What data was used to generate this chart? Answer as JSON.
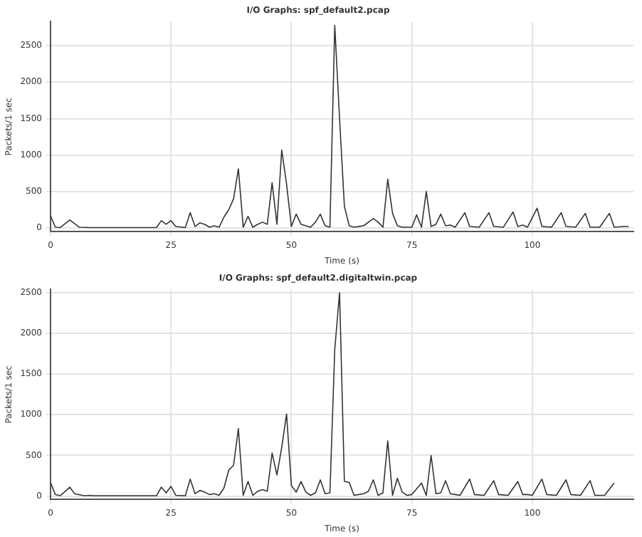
{
  "chart_data": [
    {
      "type": "line",
      "title": "I/O Graphs: spf_default2.pcap",
      "xlabel": "Time (s)",
      "ylabel": "Packets/1 sec",
      "xlim": [
        0,
        121
      ],
      "xticks": [
        0,
        25,
        50,
        75,
        100
      ],
      "ylim": [
        -50,
        2830
      ],
      "yticks": [
        0,
        500,
        1000,
        1500,
        2000,
        2500
      ],
      "grid": true,
      "legend": false,
      "marker": "none",
      "series": [
        {
          "color": "#333333",
          "x": [
            0,
            1,
            2,
            4,
            6,
            8,
            22,
            23,
            24,
            25,
            26,
            28,
            29,
            30,
            31,
            32,
            33,
            34,
            35,
            36,
            37,
            38,
            39,
            40,
            41,
            42,
            43,
            44,
            45,
            46,
            47,
            48,
            49,
            50,
            51,
            52,
            53,
            54,
            55,
            56,
            57,
            58,
            59,
            60,
            61,
            62,
            63,
            65,
            67,
            68,
            69,
            70,
            71,
            72,
            73,
            75,
            76,
            77,
            78,
            79,
            80,
            81,
            82,
            83,
            84,
            86,
            87,
            89,
            91,
            92,
            94,
            96,
            97,
            98,
            99,
            101,
            102,
            104,
            106,
            107,
            109,
            111,
            112,
            114,
            116,
            117,
            119,
            120
          ],
          "values": [
            170,
            10,
            5,
            110,
            10,
            5,
            5,
            100,
            50,
            100,
            20,
            5,
            210,
            20,
            70,
            50,
            10,
            30,
            10,
            150,
            250,
            400,
            810,
            10,
            160,
            10,
            50,
            80,
            50,
            620,
            50,
            1070,
            600,
            20,
            190,
            50,
            30,
            10,
            80,
            190,
            30,
            10,
            2780,
            1500,
            300,
            30,
            10,
            30,
            130,
            80,
            10,
            670,
            200,
            30,
            10,
            10,
            180,
            10,
            500,
            20,
            50,
            190,
            30,
            40,
            10,
            210,
            20,
            10,
            210,
            20,
            10,
            220,
            20,
            40,
            10,
            270,
            20,
            10,
            210,
            20,
            10,
            200,
            10,
            10,
            200,
            10,
            20,
            20
          ]
        }
      ]
    },
    {
      "type": "line",
      "title": "I/O Graphs: spf_default2.digitaltwin.pcap",
      "xlabel": "Time (s)",
      "ylabel": "Packets/1 sec",
      "xlim": [
        0,
        121
      ],
      "xticks": [
        0,
        25,
        50,
        75,
        100
      ],
      "ylim": [
        -40,
        2540
      ],
      "yticks": [
        0,
        500,
        1000,
        1500,
        2000,
        2500
      ],
      "grid": true,
      "legend": false,
      "marker": "none",
      "series": [
        {
          "color": "#333333",
          "x": [
            0,
            1,
            2,
            4,
            5,
            7,
            8,
            9,
            22,
            23,
            24,
            25,
            26,
            28,
            29,
            30,
            31,
            32,
            33,
            34,
            35,
            36,
            37,
            38,
            39,
            40,
            41,
            42,
            43,
            44,
            45,
            46,
            47,
            48,
            49,
            50,
            51,
            52,
            53,
            54,
            55,
            56,
            57,
            58,
            59,
            60,
            61,
            62,
            63,
            65,
            66,
            67,
            68,
            69,
            70,
            71,
            72,
            73,
            74,
            75,
            77,
            78,
            79,
            80,
            81,
            82,
            83,
            84,
            85,
            87,
            88,
            90,
            92,
            93,
            95,
            97,
            98,
            99,
            100,
            102,
            103,
            105,
            107,
            108,
            110,
            112,
            113,
            115,
            117
          ],
          "values": [
            170,
            20,
            5,
            110,
            30,
            5,
            10,
            5,
            5,
            110,
            40,
            120,
            10,
            5,
            210,
            30,
            70,
            50,
            20,
            30,
            10,
            100,
            320,
            380,
            830,
            10,
            180,
            10,
            60,
            80,
            60,
            530,
            260,
            600,
            1010,
            130,
            50,
            180,
            50,
            10,
            40,
            200,
            30,
            40,
            1800,
            2500,
            180,
            170,
            10,
            30,
            60,
            200,
            10,
            40,
            680,
            10,
            220,
            50,
            10,
            20,
            160,
            10,
            500,
            30,
            40,
            190,
            30,
            20,
            10,
            210,
            20,
            10,
            190,
            20,
            10,
            180,
            20,
            20,
            10,
            210,
            20,
            10,
            200,
            20,
            10,
            190,
            10,
            10,
            160
          ]
        }
      ]
    }
  ]
}
